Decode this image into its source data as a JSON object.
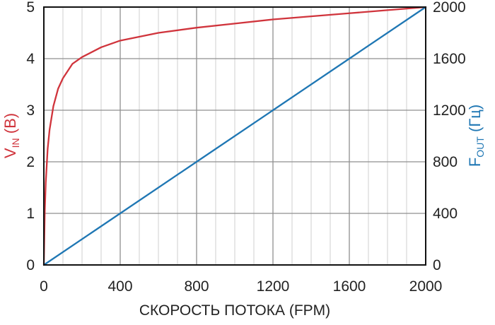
{
  "chart_data": {
    "type": "line",
    "title": "",
    "xlabel": "СКОРОСТЬ ПОТОКА (FPM)",
    "ylabel_left": {
      "main": "V",
      "sub": "IN",
      "unit": " (В)"
    },
    "ylabel_right": {
      "main": "F",
      "sub": "OUT",
      "unit": " (Гц)"
    },
    "xlim": [
      0,
      2000
    ],
    "ylim_left": [
      0,
      5
    ],
    "ylim_right": [
      0,
      2000
    ],
    "x_ticks": [
      "0",
      "400",
      "800",
      "1200",
      "1600",
      "2000"
    ],
    "y_left_ticks": [
      "0",
      "1",
      "2",
      "3",
      "4",
      "5"
    ],
    "y_right_ticks": [
      "0",
      "400",
      "800",
      "1200",
      "1600",
      "2000"
    ],
    "x_minor_step": 100,
    "grid": true,
    "colors": {
      "vin": "#d0343c",
      "fout": "#1f77b4",
      "ideal": "#111111",
      "axis_left_label": "#d0343c",
      "axis_right_label": "#1f77b4",
      "grid_major": "#8f8f8f",
      "grid_minor": "#cfcfcf"
    },
    "series": [
      {
        "axis": "left",
        "color_key": "vin",
        "x": [
          0,
          5,
          10,
          20,
          30,
          50,
          75,
          100,
          150,
          200,
          300,
          400,
          600,
          800,
          1000,
          1200,
          1400,
          1600,
          1800,
          2000
        ],
        "y": [
          0,
          1.05,
          1.6,
          2.25,
          2.62,
          3.08,
          3.42,
          3.62,
          3.9,
          4.03,
          4.22,
          4.35,
          4.5,
          4.6,
          4.68,
          4.76,
          4.82,
          4.88,
          4.94,
          5.0
        ]
      },
      {
        "axis": "right",
        "color_key": "ideal",
        "x": [
          0,
          2000
        ],
        "y": [
          0,
          2000
        ]
      },
      {
        "axis": "right",
        "color_key": "fout",
        "x": [
          0,
          400,
          800,
          1200,
          1600,
          2000
        ],
        "y": [
          0,
          400,
          800,
          1200,
          1600,
          2000
        ]
      }
    ]
  }
}
